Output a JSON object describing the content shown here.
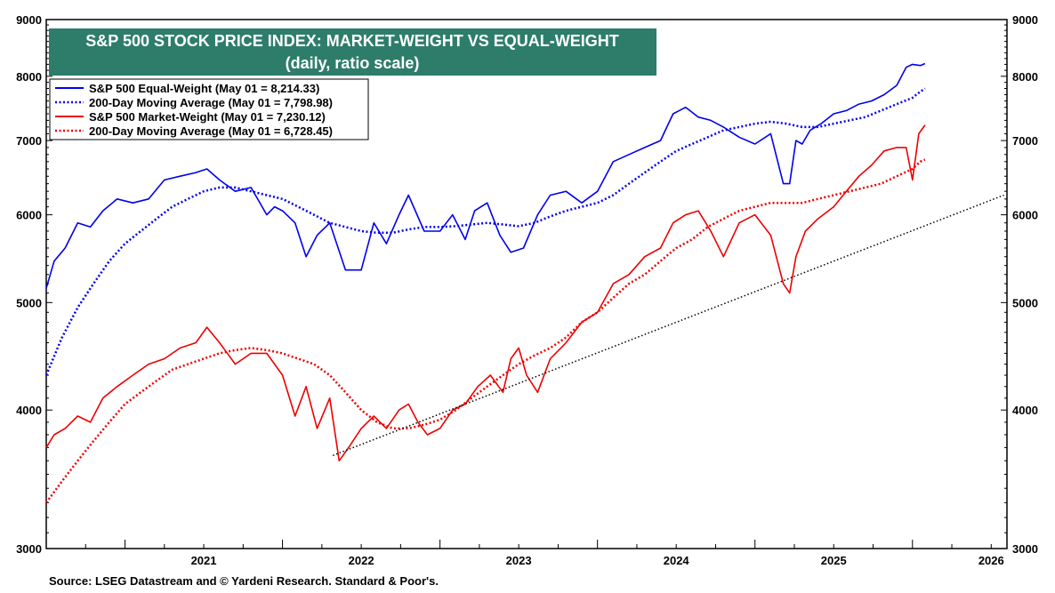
{
  "chart_data": {
    "type": "line",
    "title": "S&P 500 STOCK PRICE INDEX: MARKET-WEIGHT VS EQUAL-WEIGHT",
    "subtitle": "(daily, ratio scale)",
    "y_scale": "log",
    "ylim": [
      3000,
      9000
    ],
    "xlim": [
      2020.5,
      2026.6
    ],
    "y_ticks": [
      "3000",
      "4000",
      "5000",
      "6000",
      "7000",
      "8000",
      "9000"
    ],
    "x_ticks": [
      "2021",
      "2022",
      "2023",
      "2024",
      "2025",
      "2026"
    ],
    "grid": false,
    "legend_position": "top-left",
    "colors": {
      "equal_weight": "#0000ee",
      "market_weight": "#ee0000",
      "trendline": "#000000",
      "title_bg": "#2e7d6b"
    },
    "legend": [
      {
        "label": "S&P 500 Equal-Weight (May 01 = 8,214.33)",
        "color": "#0000ee",
        "style": "solid"
      },
      {
        "label": "200-Day Moving Average (May 01 = 7,798.98)",
        "color": "#0000ee",
        "style": "dotted"
      },
      {
        "label": "S&P 500 Market-Weight (May 01 = 7,230.12)",
        "color": "#ee0000",
        "style": "solid"
      },
      {
        "label": "200-Day Moving Average (May 01 = 6,728.45)",
        "color": "#ee0000",
        "style": "dotted"
      }
    ],
    "series": [
      {
        "name": "S&P 500 Equal-Weight (May 01 = 8,214.33)",
        "style": "solid",
        "color": "#0000ee",
        "x": [
          2020.5,
          2020.55,
          2020.62,
          2020.7,
          2020.78,
          2020.86,
          2020.95,
          2021.05,
          2021.15,
          2021.25,
          2021.35,
          2021.45,
          2021.52,
          2021.6,
          2021.7,
          2021.8,
          2021.9,
          2021.95,
          2022.0,
          2022.08,
          2022.15,
          2022.22,
          2022.3,
          2022.4,
          2022.5,
          2022.58,
          2022.66,
          2022.74,
          2022.8,
          2022.9,
          2023.0,
          2023.08,
          2023.16,
          2023.22,
          2023.3,
          2023.38,
          2023.45,
          2023.53,
          2023.62,
          2023.7,
          2023.8,
          2023.9,
          2024.0,
          2024.1,
          2024.2,
          2024.3,
          2024.4,
          2024.48,
          2024.56,
          2024.64,
          2024.72,
          2024.8,
          2024.9,
          2025.0,
          2025.1,
          2025.18,
          2025.22,
          2025.26,
          2025.3,
          2025.35,
          2025.42,
          2025.5,
          2025.58,
          2025.66,
          2025.74,
          2025.82,
          2025.9,
          2025.96,
          2026.0,
          2026.05,
          2026.08
        ],
        "y": [
          5150,
          5450,
          5600,
          5900,
          5850,
          6050,
          6200,
          6150,
          6200,
          6450,
          6500,
          6550,
          6600,
          6450,
          6300,
          6350,
          6000,
          6100,
          6050,
          5900,
          5500,
          5750,
          5900,
          5350,
          5350,
          5900,
          5650,
          6000,
          6250,
          5800,
          5800,
          6000,
          5700,
          6050,
          6150,
          5750,
          5550,
          5600,
          6000,
          6250,
          6300,
          6150,
          6300,
          6700,
          6800,
          6900,
          7000,
          7400,
          7500,
          7350,
          7300,
          7200,
          7050,
          6950,
          7100,
          6400,
          6400,
          7000,
          6950,
          7150,
          7250,
          7400,
          7450,
          7550,
          7600,
          7700,
          7850,
          8150,
          8200,
          8180,
          8214.33
        ]
      },
      {
        "name": "200-Day Moving Average (May 01 = 7,798.98)",
        "style": "dotted",
        "color": "#0000ee",
        "x": [
          2020.5,
          2020.6,
          2020.7,
          2020.8,
          2020.9,
          2021.0,
          2021.1,
          2021.2,
          2021.3,
          2021.4,
          2021.5,
          2021.6,
          2021.7,
          2021.8,
          2021.9,
          2022.0,
          2022.1,
          2022.2,
          2022.3,
          2022.4,
          2022.5,
          2022.6,
          2022.7,
          2022.8,
          2022.9,
          2023.0,
          2023.1,
          2023.2,
          2023.3,
          2023.4,
          2023.5,
          2023.6,
          2023.7,
          2023.8,
          2023.9,
          2024.0,
          2024.1,
          2024.2,
          2024.3,
          2024.4,
          2024.5,
          2024.6,
          2024.7,
          2024.8,
          2024.9,
          2025.0,
          2025.1,
          2025.2,
          2025.3,
          2025.4,
          2025.5,
          2025.6,
          2025.7,
          2025.8,
          2025.9,
          2026.0,
          2026.05,
          2026.08
        ],
        "y": [
          4300,
          4650,
          4950,
          5200,
          5450,
          5650,
          5800,
          5950,
          6100,
          6200,
          6300,
          6350,
          6350,
          6300,
          6250,
          6200,
          6100,
          6000,
          5900,
          5850,
          5800,
          5780,
          5780,
          5820,
          5850,
          5850,
          5860,
          5880,
          5900,
          5880,
          5860,
          5900,
          5980,
          6050,
          6100,
          6150,
          6250,
          6400,
          6550,
          6700,
          6850,
          6950,
          7050,
          7150,
          7200,
          7250,
          7280,
          7250,
          7200,
          7200,
          7250,
          7300,
          7350,
          7450,
          7550,
          7650,
          7750,
          7798.98
        ]
      },
      {
        "name": "S&P 500 Market-Weight (May 01 = 7,230.12)",
        "style": "solid",
        "color": "#ee0000",
        "x": [
          2020.5,
          2020.55,
          2020.62,
          2020.7,
          2020.78,
          2020.86,
          2020.95,
          2021.05,
          2021.15,
          2021.25,
          2021.35,
          2021.45,
          2021.52,
          2021.6,
          2021.7,
          2021.8,
          2021.9,
          2021.95,
          2022.0,
          2022.08,
          2022.15,
          2022.22,
          2022.3,
          2022.36,
          2022.42,
          2022.5,
          2022.58,
          2022.66,
          2022.74,
          2022.8,
          2022.86,
          2022.92,
          2023.0,
          2023.08,
          2023.16,
          2023.24,
          2023.32,
          2023.4,
          2023.45,
          2023.5,
          2023.55,
          2023.62,
          2023.7,
          2023.8,
          2023.9,
          2024.0,
          2024.1,
          2024.2,
          2024.3,
          2024.4,
          2024.48,
          2024.56,
          2024.64,
          2024.72,
          2024.8,
          2024.9,
          2025.0,
          2025.1,
          2025.18,
          2025.22,
          2025.26,
          2025.32,
          2025.4,
          2025.5,
          2025.58,
          2025.66,
          2025.74,
          2025.82,
          2025.9,
          2025.96,
          2026.0,
          2026.04,
          2026.08
        ],
        "y": [
          3700,
          3800,
          3850,
          3950,
          3900,
          4100,
          4200,
          4300,
          4400,
          4450,
          4550,
          4600,
          4750,
          4600,
          4400,
          4500,
          4500,
          4400,
          4300,
          3950,
          4200,
          3850,
          4100,
          3600,
          3700,
          3850,
          3950,
          3850,
          4000,
          4050,
          3900,
          3800,
          3850,
          4000,
          4050,
          4200,
          4300,
          4150,
          4450,
          4550,
          4300,
          4150,
          4450,
          4600,
          4800,
          4900,
          5200,
          5300,
          5500,
          5600,
          5900,
          6000,
          6050,
          5800,
          5500,
          5900,
          6000,
          5750,
          5200,
          5100,
          5500,
          5800,
          5950,
          6100,
          6300,
          6500,
          6650,
          6850,
          6900,
          6900,
          6450,
          7100,
          7230.12
        ]
      },
      {
        "name": "200-Day Moving Average (May 01 = 6,728.45)",
        "style": "dotted",
        "color": "#ee0000",
        "x": [
          2020.5,
          2020.6,
          2020.7,
          2020.8,
          2020.9,
          2021.0,
          2021.1,
          2021.2,
          2021.3,
          2021.4,
          2021.5,
          2021.6,
          2021.7,
          2021.8,
          2021.9,
          2022.0,
          2022.1,
          2022.2,
          2022.3,
          2022.4,
          2022.5,
          2022.6,
          2022.7,
          2022.8,
          2022.9,
          2023.0,
          2023.1,
          2023.2,
          2023.3,
          2023.4,
          2023.5,
          2023.6,
          2023.7,
          2023.8,
          2023.9,
          2024.0,
          2024.1,
          2024.2,
          2024.3,
          2024.4,
          2024.5,
          2024.6,
          2024.7,
          2024.8,
          2024.9,
          2025.0,
          2025.1,
          2025.2,
          2025.3,
          2025.4,
          2025.5,
          2025.6,
          2025.7,
          2025.8,
          2025.9,
          2026.0,
          2026.05,
          2026.08
        ],
        "y": [
          3300,
          3450,
          3600,
          3750,
          3900,
          4050,
          4150,
          4250,
          4350,
          4400,
          4450,
          4500,
          4530,
          4550,
          4530,
          4500,
          4450,
          4400,
          4300,
          4150,
          4000,
          3900,
          3850,
          3850,
          3880,
          3920,
          4000,
          4100,
          4200,
          4300,
          4400,
          4480,
          4550,
          4650,
          4800,
          4900,
          5050,
          5200,
          5300,
          5450,
          5600,
          5700,
          5850,
          5950,
          6050,
          6100,
          6150,
          6150,
          6150,
          6200,
          6250,
          6300,
          6350,
          6400,
          6500,
          6600,
          6700,
          6728.45
        ]
      },
      {
        "name": "",
        "style": "dotted",
        "color": "#000000",
        "x": [
          2022.32,
          2026.58
        ],
        "y": [
          3640,
          6250
        ]
      }
    ],
    "source": "Source: LSEG Datastream and © Yardeni Research. Standard & Poor's."
  }
}
